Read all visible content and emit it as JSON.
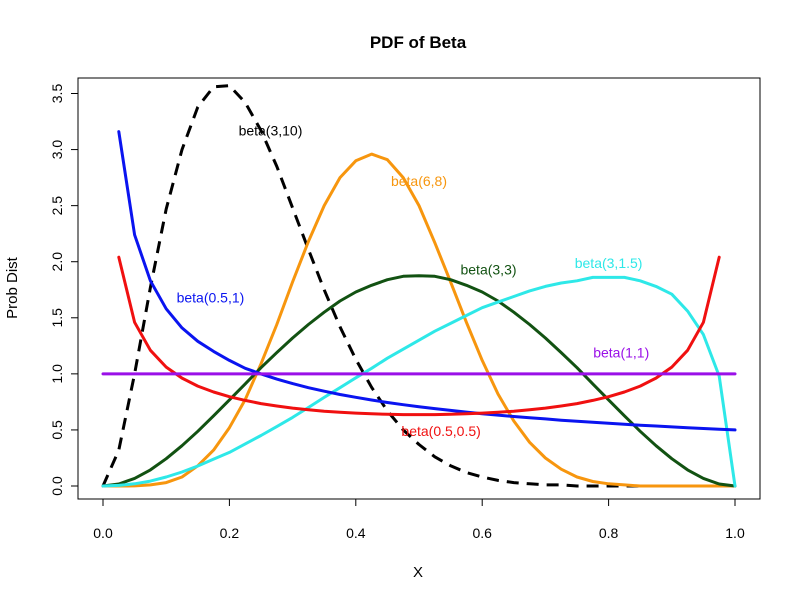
{
  "chart_data": {
    "type": "line",
    "title": "PDF of Beta",
    "xlabel": "X",
    "ylabel": "Prob Dist",
    "xlim": [
      0,
      1
    ],
    "ylim": [
      0,
      3.5
    ],
    "xticks": [
      "0.0",
      "0.2",
      "0.4",
      "0.6",
      "0.8",
      "1.0"
    ],
    "yticks": [
      "0.0",
      "0.5",
      "1.0",
      "1.5",
      "2.0",
      "2.5",
      "3.0",
      "3.5"
    ],
    "grid": false,
    "series": [
      {
        "name": "beta(3,10)",
        "color": "#000000",
        "dashed": true,
        "x": [
          0,
          0.025,
          0.05,
          0.075,
          0.1,
          0.125,
          0.15,
          0.175,
          0.2,
          0.225,
          0.25,
          0.275,
          0.3,
          0.325,
          0.35,
          0.375,
          0.4,
          0.425,
          0.45,
          0.475,
          0.5,
          0.525,
          0.55,
          0.575,
          0.6,
          0.625,
          0.65,
          0.675,
          0.7,
          0.725,
          0.75,
          0.775,
          0.8,
          0.825,
          0.85,
          0.875,
          0.9,
          0.925,
          0.95,
          0.975,
          1.0
        ],
        "y": [
          0,
          0.32,
          1.0,
          1.77,
          2.47,
          3.0,
          3.38,
          3.56,
          3.57,
          3.42,
          3.17,
          2.85,
          2.48,
          2.11,
          1.75,
          1.42,
          1.13,
          0.88,
          0.67,
          0.5,
          0.37,
          0.26,
          0.18,
          0.12,
          0.08,
          0.05,
          0.03,
          0.02,
          0.01,
          0.01,
          0,
          0,
          0,
          0,
          0,
          0,
          0,
          0,
          0,
          0,
          0
        ]
      },
      {
        "name": "beta(6,8)",
        "color": "#f7960e",
        "dashed": false,
        "x": [
          0,
          0.025,
          0.05,
          0.075,
          0.1,
          0.125,
          0.15,
          0.175,
          0.2,
          0.225,
          0.25,
          0.275,
          0.3,
          0.325,
          0.35,
          0.375,
          0.4,
          0.425,
          0.45,
          0.475,
          0.5,
          0.525,
          0.55,
          0.575,
          0.6,
          0.625,
          0.65,
          0.675,
          0.7,
          0.725,
          0.75,
          0.775,
          0.8,
          0.825,
          0.85,
          0.875,
          0.9,
          0.925,
          0.95,
          0.975,
          1.0
        ],
        "y": [
          0,
          0,
          0.001,
          0.01,
          0.03,
          0.08,
          0.18,
          0.32,
          0.52,
          0.77,
          1.09,
          1.44,
          1.82,
          2.18,
          2.5,
          2.75,
          2.9,
          2.96,
          2.91,
          2.75,
          2.5,
          2.17,
          1.82,
          1.46,
          1.12,
          0.82,
          0.58,
          0.39,
          0.25,
          0.15,
          0.08,
          0.04,
          0.02,
          0.01,
          0,
          0,
          0,
          0,
          0,
          0,
          0
        ]
      },
      {
        "name": "beta(3,3)",
        "color": "#125212",
        "dashed": false,
        "x": [
          0,
          0.025,
          0.05,
          0.075,
          0.1,
          0.125,
          0.15,
          0.175,
          0.2,
          0.225,
          0.25,
          0.275,
          0.3,
          0.325,
          0.35,
          0.375,
          0.4,
          0.425,
          0.45,
          0.475,
          0.5,
          0.525,
          0.55,
          0.575,
          0.6,
          0.625,
          0.65,
          0.675,
          0.7,
          0.725,
          0.75,
          0.775,
          0.8,
          0.825,
          0.85,
          0.875,
          0.9,
          0.925,
          0.95,
          0.975,
          1.0
        ],
        "y": [
          0,
          0.018,
          0.068,
          0.144,
          0.243,
          0.359,
          0.488,
          0.626,
          0.768,
          0.91,
          1.055,
          1.19,
          1.32,
          1.44,
          1.55,
          1.65,
          1.73,
          1.79,
          1.84,
          1.87,
          1.875,
          1.87,
          1.84,
          1.79,
          1.73,
          1.65,
          1.55,
          1.44,
          1.32,
          1.19,
          1.055,
          0.91,
          0.768,
          0.626,
          0.488,
          0.359,
          0.243,
          0.144,
          0.068,
          0.018,
          0
        ]
      },
      {
        "name": "beta(3,1.5)",
        "color": "#2ee8e8",
        "dashed": false,
        "x": [
          0,
          0.025,
          0.05,
          0.075,
          0.1,
          0.125,
          0.15,
          0.175,
          0.2,
          0.225,
          0.25,
          0.275,
          0.3,
          0.325,
          0.35,
          0.375,
          0.4,
          0.425,
          0.45,
          0.475,
          0.5,
          0.525,
          0.55,
          0.575,
          0.6,
          0.625,
          0.65,
          0.675,
          0.7,
          0.725,
          0.75,
          0.775,
          0.8,
          0.825,
          0.85,
          0.875,
          0.9,
          0.925,
          0.95,
          0.975,
          1.0
        ],
        "y": [
          0,
          0.005,
          0.02,
          0.044,
          0.08,
          0.125,
          0.178,
          0.24,
          0.3,
          0.375,
          0.45,
          0.53,
          0.612,
          0.7,
          0.79,
          0.877,
          0.965,
          1.05,
          1.14,
          1.22,
          1.3,
          1.38,
          1.45,
          1.52,
          1.59,
          1.64,
          1.69,
          1.74,
          1.78,
          1.81,
          1.83,
          1.86,
          1.86,
          1.86,
          1.83,
          1.78,
          1.71,
          1.56,
          1.35,
          0.98,
          0
        ]
      },
      {
        "name": "beta(0.5,1)",
        "color": "#0a14f0",
        "dashed": false,
        "x": [
          0.025,
          0.05,
          0.075,
          0.1,
          0.125,
          0.15,
          0.175,
          0.2,
          0.225,
          0.25,
          0.275,
          0.3,
          0.325,
          0.35,
          0.375,
          0.4,
          0.425,
          0.45,
          0.475,
          0.5,
          0.525,
          0.55,
          0.575,
          0.6,
          0.625,
          0.65,
          0.675,
          0.7,
          0.725,
          0.75,
          0.775,
          0.8,
          0.825,
          0.85,
          0.875,
          0.9,
          0.925,
          0.95,
          0.975,
          1.0
        ],
        "y": [
          3.16,
          2.24,
          1.83,
          1.58,
          1.41,
          1.29,
          1.2,
          1.12,
          1.05,
          1.0,
          0.953,
          0.913,
          0.877,
          0.845,
          0.816,
          0.791,
          0.767,
          0.745,
          0.725,
          0.707,
          0.69,
          0.674,
          0.659,
          0.645,
          0.632,
          0.62,
          0.609,
          0.598,
          0.587,
          0.577,
          0.568,
          0.559,
          0.55,
          0.542,
          0.535,
          0.527,
          0.52,
          0.513,
          0.506,
          0.5
        ]
      },
      {
        "name": "beta(0.5,0.5)",
        "color": "#f01010",
        "dashed": false,
        "x": [
          0.025,
          0.05,
          0.075,
          0.1,
          0.125,
          0.15,
          0.175,
          0.2,
          0.225,
          0.25,
          0.275,
          0.3,
          0.325,
          0.35,
          0.375,
          0.4,
          0.425,
          0.45,
          0.475,
          0.5,
          0.525,
          0.55,
          0.575,
          0.6,
          0.625,
          0.65,
          0.675,
          0.7,
          0.725,
          0.75,
          0.775,
          0.8,
          0.825,
          0.85,
          0.875,
          0.9,
          0.925,
          0.95,
          0.975
        ],
        "y": [
          2.04,
          1.46,
          1.21,
          1.06,
          0.962,
          0.891,
          0.838,
          0.796,
          0.763,
          0.735,
          0.713,
          0.695,
          0.68,
          0.667,
          0.657,
          0.65,
          0.644,
          0.639,
          0.637,
          0.637,
          0.637,
          0.639,
          0.644,
          0.65,
          0.657,
          0.667,
          0.68,
          0.695,
          0.713,
          0.735,
          0.763,
          0.796,
          0.838,
          0.891,
          0.962,
          1.06,
          1.21,
          1.46,
          2.04
        ]
      },
      {
        "name": "beta(1,1)",
        "color": "#9a10e8",
        "dashed": false,
        "x": [
          0,
          1.0
        ],
        "y": [
          1.0,
          1.0
        ]
      }
    ],
    "annotations": [
      {
        "text": "beta(3,10)",
        "x": 0.265,
        "y": 3.17,
        "color": "#000000"
      },
      {
        "text": "beta(6,8)",
        "x": 0.5,
        "y": 2.72,
        "color": "#f7960e"
      },
      {
        "text": "beta(3,3)",
        "x": 0.61,
        "y": 1.93,
        "color": "#125212"
      },
      {
        "text": "beta(3,1.5)",
        "x": 0.8,
        "y": 1.99,
        "color": "#2ee8e8"
      },
      {
        "text": "beta(0.5,1)",
        "x": 0.17,
        "y": 1.68,
        "color": "#0a14f0"
      },
      {
        "text": "beta(1,1)",
        "x": 0.82,
        "y": 1.19,
        "color": "#9a10e8"
      },
      {
        "text": "beta(0.5,0.5)",
        "x": 0.535,
        "y": 0.49,
        "color": "#f01010"
      }
    ]
  }
}
